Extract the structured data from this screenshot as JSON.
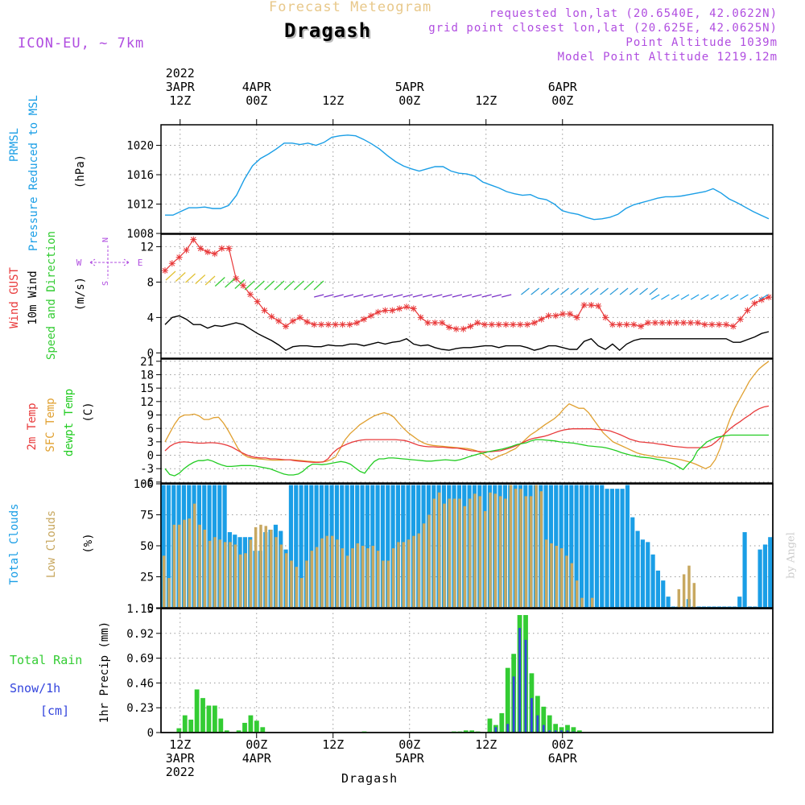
{
  "header": {
    "subtitle": "Forecast Meteogram",
    "location": "Dragash",
    "model": "ICON-EU, ~ 7km",
    "requested": "requested lon,lat (20.6540E, 42.0622N)",
    "grid": "grid point closest lon,lat (20.625E, 42.0625N)",
    "altitude": "Point Altitude 1039m",
    "model_altitude": "Model Point Altitude 1219.12m",
    "credit": "by Angel",
    "footer": "Dragash"
  },
  "colors": {
    "pressure": "#1a9ee6",
    "gust": "#e8393a",
    "wind": "#000000",
    "arrow": "#33cc33",
    "t2m": "#e8393a",
    "tsfc": "#e0a030",
    "dewpt": "#22cc22",
    "total_clouds": "#1a9ee6",
    "low_clouds": "#c8a860",
    "rain": "#33cc33",
    "snow": "#3344dd",
    "compass": "#b04de0"
  },
  "compass": {
    "n": "N",
    "s": "S",
    "e": "E",
    "w": "W"
  },
  "chart_data": {
    "type": "meteogram",
    "time": {
      "start_hour": -3,
      "end_hour": 93,
      "top_ticks": [
        {
          "hour": 0,
          "lines": [
            "2022",
            "3APR",
            "12Z"
          ]
        },
        {
          "hour": 12,
          "lines": [
            "4APR",
            "00Z"
          ]
        },
        {
          "hour": 24,
          "lines": [
            "12Z"
          ]
        },
        {
          "hour": 36,
          "lines": [
            "5APR",
            "00Z"
          ]
        },
        {
          "hour": 48,
          "lines": [
            "12Z"
          ]
        },
        {
          "hour": 60,
          "lines": [
            "6APR",
            "00Z"
          ]
        }
      ],
      "bottom_ticks": [
        {
          "hour": 0,
          "lines": [
            "12Z",
            "3APR",
            "2022"
          ]
        },
        {
          "hour": 12,
          "lines": [
            "00Z",
            "4APR"
          ]
        },
        {
          "hour": 24,
          "lines": [
            "12Z"
          ]
        },
        {
          "hour": 36,
          "lines": [
            "00Z",
            "5APR"
          ]
        },
        {
          "hour": 48,
          "lines": [
            "12Z"
          ]
        },
        {
          "hour": 60,
          "lines": [
            "00Z",
            "6APR"
          ]
        }
      ]
    },
    "pressure": {
      "labels": [
        "PRMSL",
        "Pressure Reduced to MSL"
      ],
      "unit": "(hPa)",
      "ylim": [
        1008,
        1022.8
      ],
      "yticks": [
        1008,
        1012,
        1016,
        1020
      ],
      "values": [
        1010.5,
        1010.5,
        1011,
        1011.5,
        1011.5,
        1011.6,
        1011.4,
        1011.4,
        1011.8,
        1013.2,
        1015.4,
        1017.2,
        1018.2,
        1018.8,
        1019.5,
        1020.3,
        1020.3,
        1020.1,
        1020.3,
        1020,
        1020.4,
        1021.1,
        1021.3,
        1021.4,
        1021.3,
        1020.8,
        1020.2,
        1019.5,
        1018.6,
        1017.8,
        1017.2,
        1016.8,
        1016.5,
        1016.8,
        1017.1,
        1017.1,
        1016.5,
        1016.2,
        1016.1,
        1015.8,
        1015,
        1014.6,
        1014.2,
        1013.7,
        1013.4,
        1013.2,
        1013.3,
        1012.8,
        1012.6,
        1012,
        1011.1,
        1010.8,
        1010.6,
        1010.2,
        1009.9,
        1010,
        1010.2,
        1010.6,
        1011.4,
        1011.9,
        1012.2,
        1012.5,
        1012.8,
        1013,
        1013,
        1013.1,
        1013.3,
        1013.5,
        1013.7,
        1014.1,
        1013.5,
        1012.7,
        1012.2,
        1011.6,
        1011,
        1010.5,
        1010
      ]
    },
    "wind": {
      "labels": [
        "Wind GUST",
        "10m Wind",
        "Speed and Direction"
      ],
      "unit": "(m/s)",
      "ylim": [
        -0.6,
        13.4
      ],
      "yticks": [
        0,
        4,
        8,
        12
      ],
      "gust": [
        9.3,
        10.1,
        10.8,
        11.6,
        12.8,
        11.8,
        11.4,
        11.2,
        11.8,
        11.8,
        8.4,
        7.6,
        6.6,
        5.8,
        4.8,
        4.1,
        3.6,
        3,
        3.6,
        4,
        3.5,
        3.2,
        3.2,
        3.2,
        3.2,
        3.2,
        3.2,
        3.4,
        3.8,
        4.2,
        4.6,
        4.8,
        4.8,
        5,
        5.2,
        5,
        4,
        3.4,
        3.4,
        3.4,
        2.9,
        2.7,
        2.7,
        3,
        3.4,
        3.2,
        3.2,
        3.2,
        3.2,
        3.2,
        3.2,
        3.2,
        3.4,
        3.8,
        4.2,
        4.2,
        4.4,
        4.4,
        4,
        5.4,
        5.4,
        5.3,
        4,
        3.2,
        3.2,
        3.2,
        3.2,
        3,
        3.4,
        3.4,
        3.4,
        3.4,
        3.4,
        3.4,
        3.4,
        3.4,
        3.2,
        3.2,
        3.2,
        3.2,
        3,
        3.8,
        4.8,
        5.6,
        6,
        6.3
      ],
      "speed": [
        3.2,
        4,
        4.2,
        3.8,
        3.2,
        3.2,
        2.8,
        3.1,
        3,
        3.2,
        3.4,
        3.2,
        2.7,
        2.2,
        1.8,
        1.4,
        0.9,
        0.3,
        0.7,
        0.8,
        0.8,
        0.7,
        0.7,
        0.9,
        0.8,
        0.8,
        1,
        1,
        0.8,
        1,
        1.2,
        1,
        1.2,
        1.3,
        1.6,
        1,
        0.8,
        0.9,
        0.6,
        0.4,
        0.3,
        0.5,
        0.6,
        0.6,
        0.7,
        0.8,
        0.8,
        0.6,
        0.8,
        0.8,
        0.8,
        0.6,
        0.3,
        0.5,
        0.8,
        0.8,
        0.6,
        0.4,
        0.4,
        1.3,
        1.6,
        0.8,
        0.4,
        1,
        0.3,
        1,
        1.4,
        1.6,
        1.6,
        1.6,
        1.6,
        1.6,
        1.6,
        1.6,
        1.6,
        1.6,
        1.6,
        1.6,
        1.6,
        1.6,
        1.2,
        1.2,
        1.5,
        1.8,
        2.2,
        2.4
      ]
    },
    "temperature": {
      "labels": [
        "2m Temp",
        "SFC Temp",
        "dewpt Temp"
      ],
      "unit": "(C)",
      "ylim": [
        -6.2,
        21.5
      ],
      "yticks": [
        -6,
        -3,
        0,
        3,
        6,
        9,
        12,
        15,
        18,
        21
      ],
      "t2m": [
        1,
        2,
        2.6,
        2.9,
        3,
        2.9,
        2.8,
        2.7,
        2.7,
        2.8,
        2.8,
        2.7,
        2.5,
        2.2,
        1.8,
        1.2,
        0.6,
        0.1,
        -0.3,
        -0.5,
        -0.6,
        -0.6,
        -0.8,
        -0.8,
        -0.9,
        -1,
        -1,
        -1.2,
        -1.3,
        -1.4,
        -1.5,
        -1.6,
        -1.6,
        -1.5,
        -0.8,
        0.5,
        1.4,
        2,
        2.5,
        2.9,
        3.2,
        3.4,
        3.5,
        3.5,
        3.5,
        3.5,
        3.5,
        3.5,
        3.5,
        3.4,
        3.3,
        3,
        2.6,
        2.2,
        2,
        1.9,
        1.9,
        1.8,
        1.8,
        1.7,
        1.6,
        1.6,
        1.4,
        1.2,
        1,
        0.9,
        0.8,
        0.8,
        0.8,
        0.9,
        1,
        1.3,
        1.6,
        2,
        2.5,
        3,
        3.5,
        3.8,
        4,
        4.2,
        4.5,
        4.9,
        5.3,
        5.6,
        5.8,
        5.9,
        5.9,
        5.9,
        5.9,
        5.9,
        5.8,
        5.7,
        5.6,
        5.4,
        5,
        4.6,
        4.1,
        3.6,
        3.3,
        3,
        2.9,
        2.8,
        2.7,
        2.5,
        2.4,
        2.2,
        2,
        1.9,
        1.8,
        1.7,
        1.7,
        1.7,
        1.7,
        1.8,
        2.2,
        3,
        4,
        5,
        6,
        6.8,
        7.5,
        8.3,
        9,
        9.8,
        10.4,
        10.8,
        11
      ],
      "tsfc": [
        3,
        5,
        7,
        8.5,
        9,
        9,
        9.2,
        8.8,
        8,
        8,
        8.4,
        8.5,
        7.2,
        5.5,
        3.5,
        1.5,
        0.2,
        -0.4,
        -0.7,
        -0.8,
        -0.9,
        -1,
        -1.1,
        -1.1,
        -1.1,
        -1,
        -1,
        -1.1,
        -1.2,
        -1.3,
        -1.4,
        -1.5,
        -1.5,
        -1.4,
        -1,
        -0.4,
        1.5,
        3.5,
        4.8,
        5.8,
        6.8,
        7.5,
        8.2,
        8.8,
        9.2,
        9.5,
        9.2,
        8.5,
        7.2,
        6,
        5,
        4.2,
        3.4,
        2.8,
        2.4,
        2.2,
        2.1,
        2,
        1.9,
        1.8,
        1.7,
        1.6,
        1.5,
        1.3,
        1,
        0.5,
        -0.2,
        -1,
        -0.5,
        0,
        0.4,
        1,
        1.5,
        2.5,
        3.5,
        4.5,
        5.2,
        6,
        6.8,
        7.5,
        8.2,
        9.2,
        10.5,
        11.5,
        11,
        10.5,
        10.5,
        9.5,
        8,
        6.5,
        5,
        4,
        3,
        2.5,
        2,
        1.5,
        1,
        0.5,
        0.2,
        0,
        -0.2,
        -0.4,
        -0.5,
        -0.6,
        -0.7,
        -0.8,
        -1,
        -1.3,
        -1.6,
        -2,
        -2.5,
        -3,
        -2.5,
        -1,
        1.5,
        5,
        8,
        10.5,
        12.5,
        14.5,
        16.5,
        18,
        19.3,
        20.2,
        21
      ],
      "dewpt": [
        -3,
        -4.3,
        -4.6,
        -4,
        -3,
        -2.2,
        -1.6,
        -1.2,
        -1.2,
        -1,
        -1.3,
        -1.8,
        -2.2,
        -2.5,
        -2.5,
        -2.4,
        -2.3,
        -2.3,
        -2.3,
        -2.4,
        -2.6,
        -2.8,
        -3,
        -3.4,
        -3.8,
        -4.2,
        -4.4,
        -4.4,
        -4.2,
        -3.6,
        -2.6,
        -2,
        -2,
        -2.1,
        -2,
        -1.8,
        -1.6,
        -1.4,
        -1.6,
        -2,
        -2.8,
        -3.6,
        -4,
        -2.6,
        -1.4,
        -0.8,
        -0.8,
        -0.6,
        -0.6,
        -0.7,
        -0.8,
        -0.9,
        -1,
        -1.1,
        -1.2,
        -1.3,
        -1.3,
        -1.2,
        -1.1,
        -1,
        -1.1,
        -1.2,
        -1,
        -0.7,
        -0.3,
        0,
        0.3,
        0.5,
        0.8,
        1,
        1.2,
        1.4,
        1.7,
        2,
        2.4,
        2.6,
        2.8,
        3.2,
        3.5,
        3.5,
        3.4,
        3.3,
        3.2,
        3,
        2.9,
        2.8,
        2.7,
        2.5,
        2.3,
        2.1,
        2,
        1.9,
        1.8,
        1.6,
        1.3,
        1,
        0.6,
        0.3,
        0,
        -0.2,
        -0.4,
        -0.5,
        -0.6,
        -0.8,
        -1,
        -1.2,
        -1.6,
        -2,
        -2.6,
        -3.2,
        -2,
        -1,
        1,
        2,
        3,
        3.5,
        4,
        4.2,
        4.4,
        4.5,
        4.5,
        4.5,
        4.5,
        4.5,
        4.5,
        4.5,
        4.5,
        4.5
      ]
    },
    "clouds": {
      "labels": [
        "Total Clouds",
        "Low Clouds"
      ],
      "unit": "(%)",
      "ylim": [
        0,
        100
      ],
      "yticks": [
        0,
        25,
        50,
        75,
        100
      ],
      "total": [
        99,
        99,
        99,
        99,
        99,
        99,
        99,
        99,
        99,
        99,
        99,
        99,
        99,
        61,
        59,
        57,
        57,
        57,
        46,
        46,
        61,
        63,
        67,
        62,
        47,
        99,
        99,
        99,
        99,
        99,
        99,
        99,
        99,
        99,
        99,
        99,
        99,
        99,
        99,
        99,
        99,
        99,
        99,
        99,
        99,
        99,
        99,
        99,
        99,
        99,
        99,
        99,
        99,
        99,
        99,
        99,
        99,
        99,
        99,
        99,
        99,
        99,
        99,
        99,
        99,
        99,
        99,
        99,
        99,
        99,
        99,
        99,
        99,
        99,
        99,
        99,
        99,
        99,
        99,
        99,
        99,
        99,
        99,
        99,
        99,
        99,
        99,
        96,
        96,
        96,
        96,
        99,
        73,
        62,
        55,
        53,
        43,
        30,
        22,
        9,
        1,
        1,
        1,
        7,
        1,
        1,
        1,
        1,
        1,
        1,
        1,
        1,
        1,
        9,
        61,
        1,
        1,
        47,
        51,
        57
      ],
      "low": [
        42,
        24,
        67,
        67,
        71,
        72,
        84,
        67,
        63,
        54,
        57,
        55,
        53,
        53,
        51,
        43,
        44,
        55,
        65,
        67,
        66,
        63,
        57,
        51,
        44,
        38,
        33,
        24,
        38,
        46,
        49,
        56,
        58,
        58,
        55,
        48,
        42,
        48,
        52,
        50,
        48,
        50,
        46,
        38,
        38,
        48,
        53,
        53,
        55,
        58,
        60,
        68,
        75,
        88,
        93,
        84,
        88,
        88,
        88,
        82,
        88,
        92,
        90,
        78,
        93,
        92,
        90,
        88,
        99,
        96,
        96,
        90,
        90,
        99,
        94,
        55,
        52,
        50,
        48,
        42,
        36,
        22,
        8,
        0,
        8,
        0,
        0,
        0,
        0,
        0,
        0,
        0,
        0,
        0,
        0,
        0,
        0,
        0,
        0,
        0,
        0,
        15,
        27,
        34,
        20,
        0,
        0
      ]
    },
    "precip": {
      "labels": [
        "Total Rain",
        "Snow/1h",
        "[cm]"
      ],
      "ylabel": "1hr Precip (mm)",
      "ylim": [
        0,
        1.15
      ],
      "yticks": [
        0,
        0.23,
        0.46,
        0.69,
        0.92,
        1.15
      ],
      "rain": [
        0,
        0.04,
        0.16,
        0.12,
        0.4,
        0.32,
        0.25,
        0.25,
        0.13,
        0.02,
        0,
        0.02,
        0.09,
        0.16,
        0.11,
        0.05,
        0,
        0,
        0,
        0,
        0,
        0,
        0,
        0,
        0,
        0,
        0,
        0,
        0,
        0,
        0,
        0,
        0.01,
        0,
        0,
        0,
        0,
        0,
        0,
        0,
        0,
        0,
        0,
        0,
        0,
        0,
        0,
        0.01,
        0.01,
        0.02,
        0.02,
        0.01,
        0,
        0.13,
        0.07,
        0.18,
        0.6,
        0.73,
        1.09,
        1.09,
        0.55,
        0.34,
        0.24,
        0.16,
        0.08,
        0.05,
        0.07,
        0.05,
        0.02,
        0,
        0,
        0,
        0,
        0,
        0,
        0,
        0,
        0,
        0,
        0,
        0,
        0,
        0,
        0,
        0,
        0,
        0,
        0,
        0,
        0,
        0,
        0,
        0,
        0,
        0,
        0,
        0,
        0,
        0,
        0,
        0
      ],
      "snow": [
        0,
        0,
        0,
        0,
        0,
        0,
        0,
        0,
        0,
        0,
        0,
        0,
        0,
        0,
        0,
        0,
        0,
        0,
        0,
        0,
        0,
        0,
        0,
        0,
        0,
        0,
        0,
        0,
        0,
        0,
        0,
        0,
        0,
        0,
        0,
        0,
        0,
        0,
        0,
        0,
        0,
        0,
        0,
        0,
        0,
        0,
        0,
        0,
        0,
        0,
        0,
        0,
        0,
        0,
        0.05,
        0,
        0.08,
        0.52,
        0.97,
        0.86,
        0.32,
        0.16,
        0.07,
        0.02,
        0.02,
        0.02,
        0.02,
        0.01,
        0,
        0,
        0,
        0,
        0,
        0,
        0,
        0,
        0,
        0,
        0,
        0,
        0,
        0,
        0,
        0,
        0,
        0,
        0,
        0,
        0,
        0,
        0,
        0,
        0,
        0,
        0,
        0,
        0,
        0,
        0,
        0,
        0
      ]
    }
  }
}
